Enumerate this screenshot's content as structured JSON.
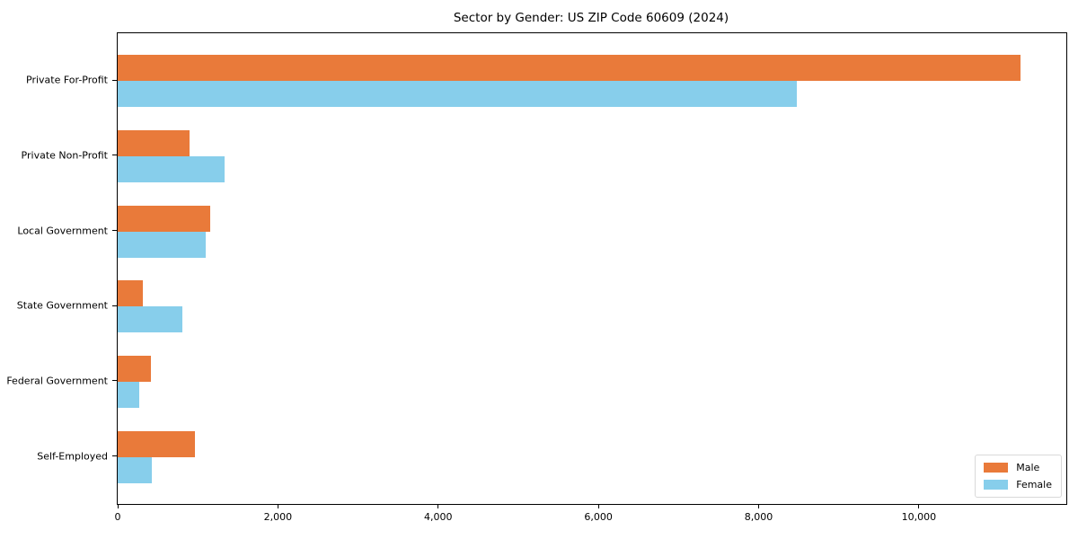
{
  "chart_data": {
    "type": "bar",
    "orientation": "horizontal",
    "title": "Sector by Gender: US ZIP Code 60609 (2024)",
    "categories": [
      "Private For-Profit",
      "Private Non-Profit",
      "Local Government",
      "State Government",
      "Federal Government",
      "Self-Employed"
    ],
    "series": [
      {
        "name": "Male",
        "color": "#e97a3a",
        "values": [
          11270,
          900,
          1150,
          310,
          420,
          960
        ]
      },
      {
        "name": "Female",
        "color": "#87ceeb",
        "values": [
          8480,
          1330,
          1100,
          810,
          270,
          430
        ]
      }
    ],
    "xlabel": "",
    "ylabel": "",
    "xlim": [
      0,
      11840
    ],
    "xticks": [
      0,
      2000,
      4000,
      6000,
      8000,
      10000
    ],
    "xtick_labels": [
      "0",
      "2,000",
      "4,000",
      "6,000",
      "8,000",
      "10,000"
    ],
    "grid": false,
    "legend_position": "lower right",
    "colors": {
      "spine": "#000000",
      "background": "#ffffff",
      "legend_border": "#d9d9d9"
    }
  }
}
